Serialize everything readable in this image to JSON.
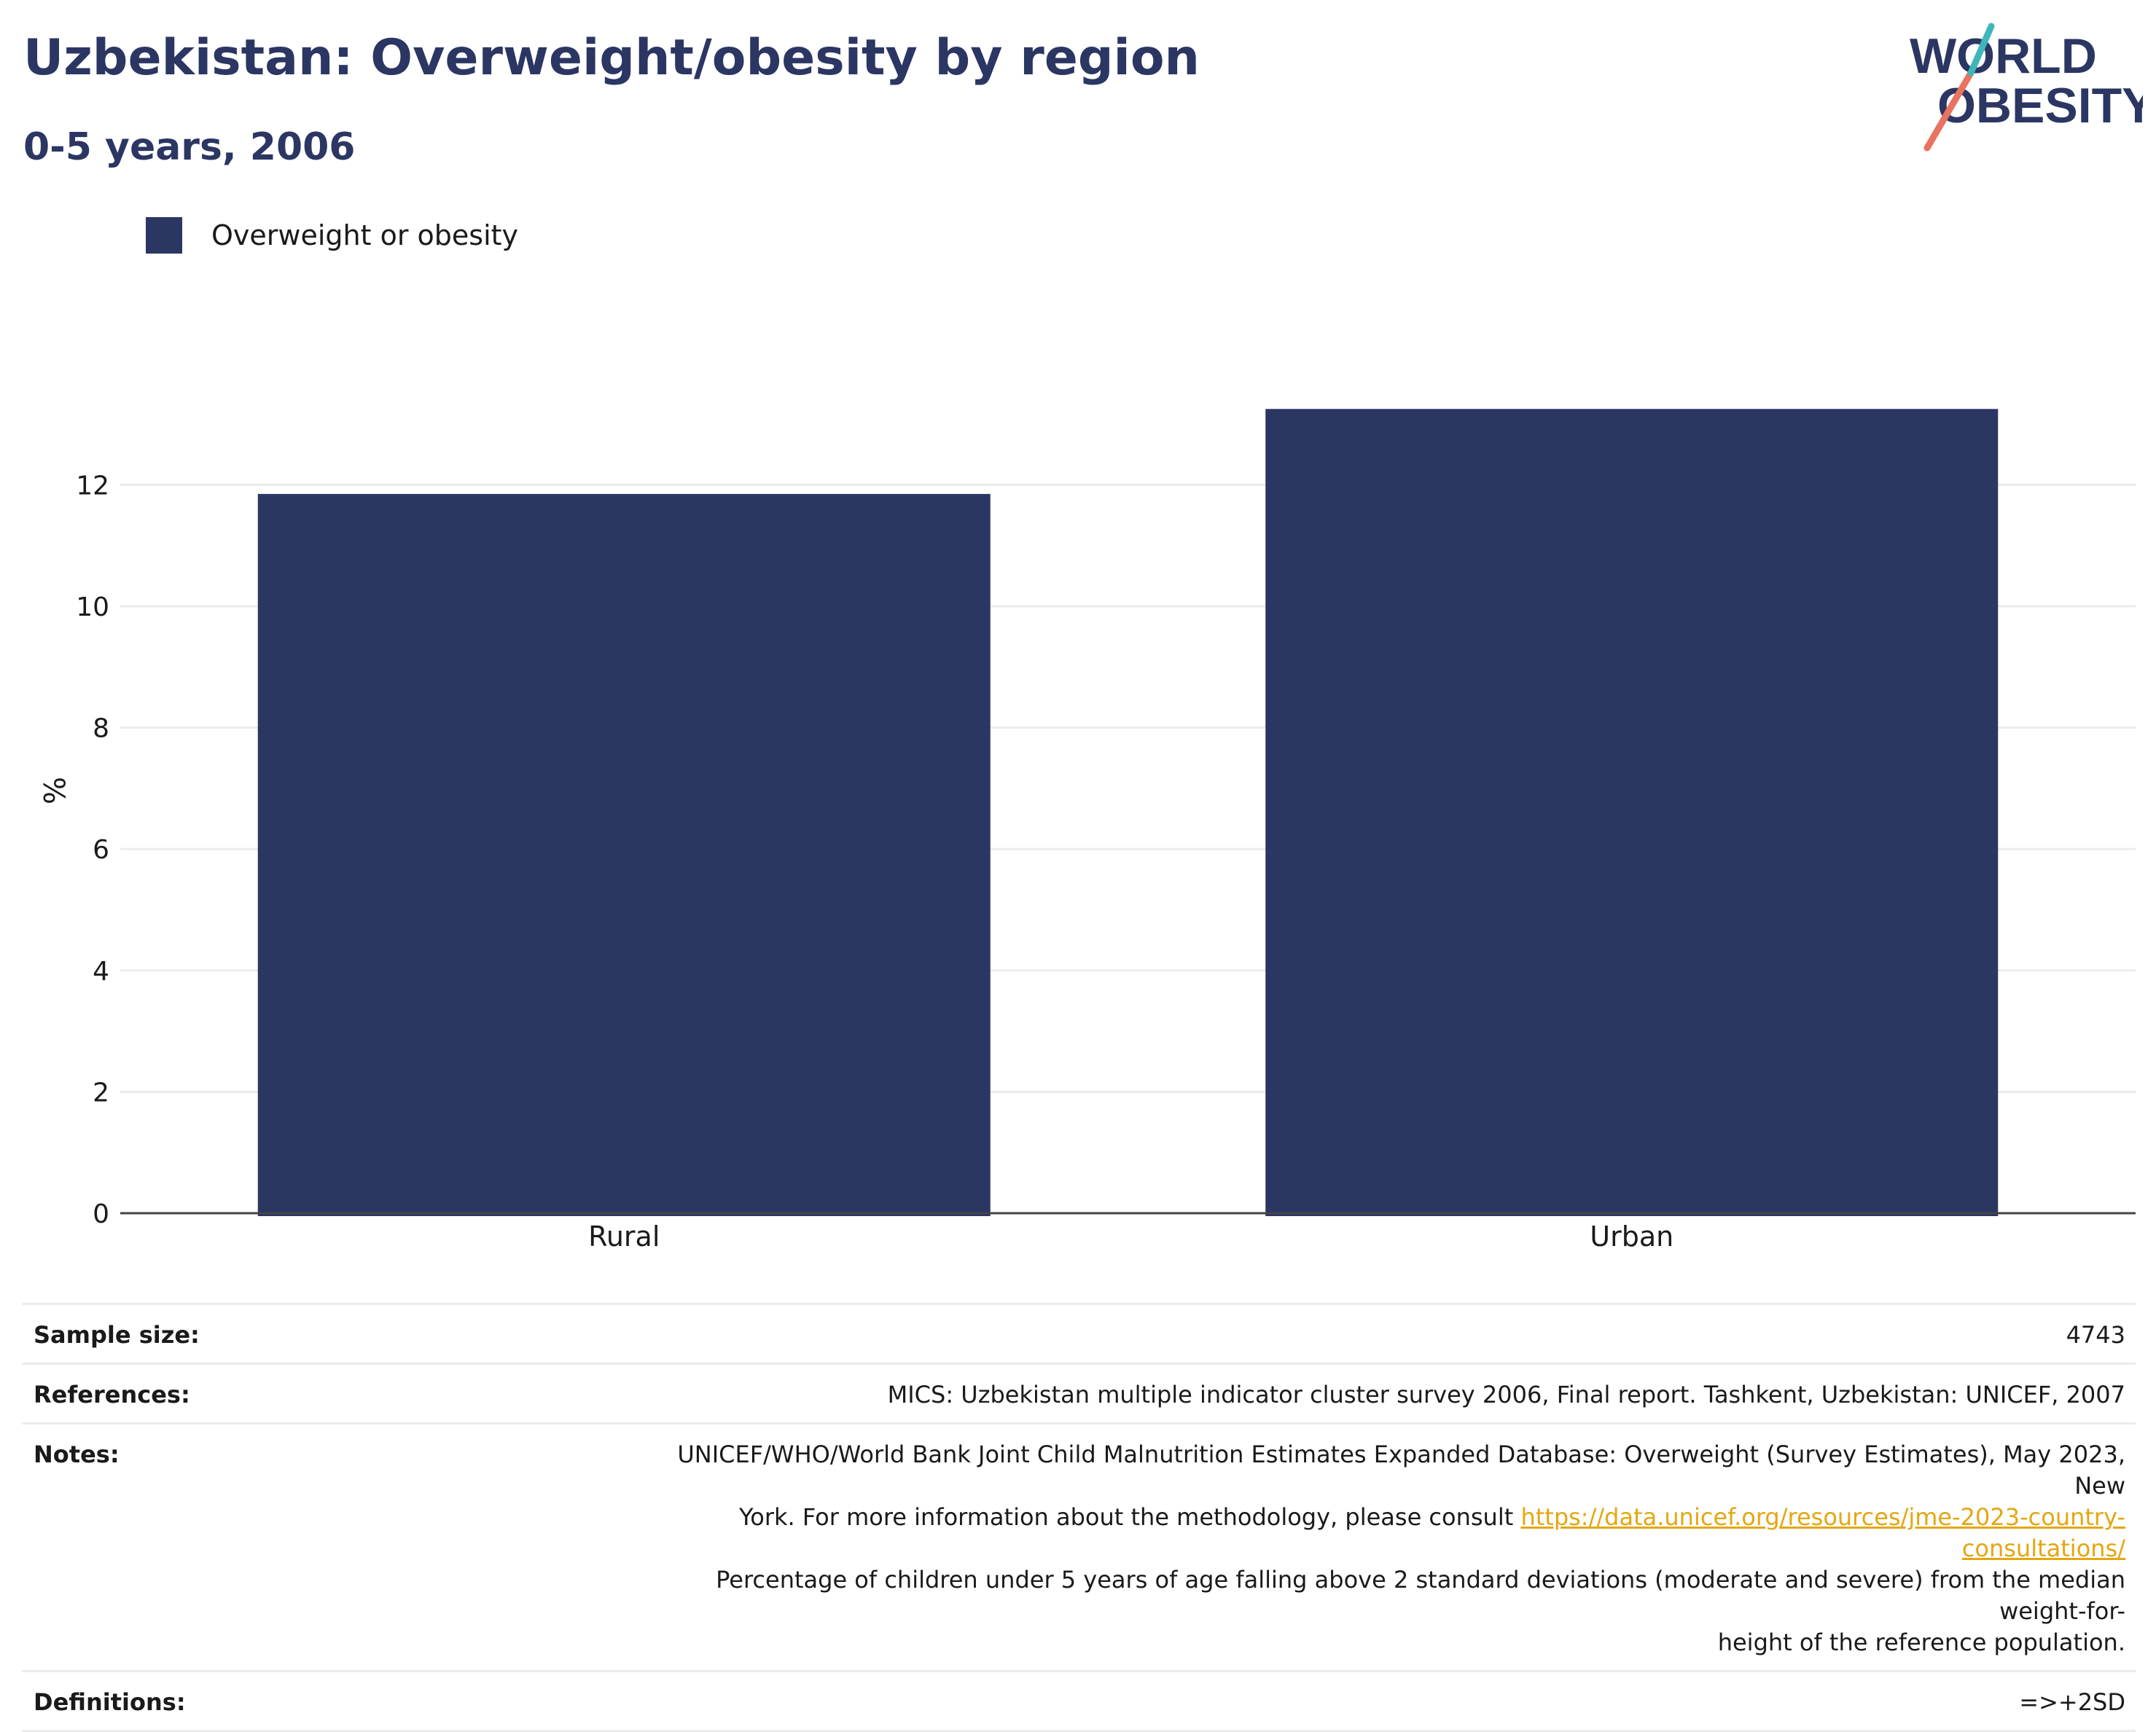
{
  "title": "Uzbekistan: Overweight/obesity by region",
  "subtitle": "0-5 years, 2006",
  "logo": {
    "line1": "WORLD",
    "line2": "OBESITY",
    "colors": {
      "text": "#2b3663",
      "slash_red": "#e8735f",
      "slash_teal": "#3fb6b9"
    }
  },
  "colors": {
    "bar": "#2b3663",
    "grid": "#ebebeb",
    "axis": "#444444",
    "link": "#e3a712"
  },
  "chart_data": {
    "type": "bar",
    "categories": [
      "Rural",
      "Urban"
    ],
    "series": [
      {
        "name": "Overweight or obesity",
        "values": [
          11.85,
          13.25
        ]
      }
    ],
    "ylabel": "%",
    "xlabel": "",
    "ylim": [
      0,
      14
    ],
    "yticks": [
      "0",
      "2",
      "4",
      "6",
      "8",
      "10",
      "12"
    ],
    "grid": true,
    "legend_position": "top-left"
  },
  "table": {
    "sample_size": {
      "label": "Sample size:",
      "value": "4743"
    },
    "references": {
      "label": "References:",
      "value": "MICS: Uzbekistan multiple indicator cluster survey 2006, Final report. Tashkent, Uzbekistan: UNICEF, 2007"
    },
    "notes": {
      "label": "Notes:",
      "line1": "UNICEF/WHO/World Bank Joint Child Malnutrition Estimates Expanded Database: Overweight (Survey Estimates), May 2023, New",
      "line2_prefix": "York. For more information about the methodology, please consult ",
      "link": "https://data.unicef.org/resources/jme-2023-country-consultations/",
      "line3": "Percentage of children under 5 years of age falling above 2 standard deviations (moderate and severe) from the median weight-for-",
      "line4": "height of the reference population."
    },
    "definitions": {
      "label": "Definitions:",
      "value": "=>+2SD"
    }
  }
}
